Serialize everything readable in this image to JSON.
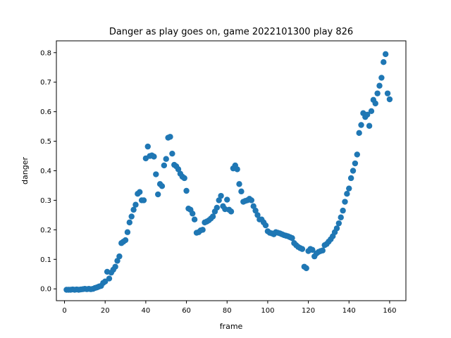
{
  "chart_data": {
    "type": "scatter",
    "title": "Danger as play goes on, game 2022101300 play 826",
    "xlabel": "frame",
    "ylabel": "danger",
    "xlim": [
      -4.0,
      168.0
    ],
    "ylim": [
      -0.04,
      0.84
    ],
    "xticks": [
      0,
      20,
      40,
      60,
      80,
      100,
      120,
      140,
      160
    ],
    "yticks": [
      0.0,
      0.1,
      0.2,
      0.3,
      0.4,
      0.5,
      0.6,
      0.7,
      0.8
    ],
    "grid": false,
    "legend": "none",
    "marker_color": "#1f77b4",
    "series": [
      {
        "x": [
          1,
          2,
          3,
          4,
          5,
          6,
          7,
          8,
          9,
          10,
          11,
          12,
          13,
          14,
          15,
          16,
          17,
          18,
          19,
          20,
          21,
          22,
          23,
          24,
          25,
          26,
          27,
          28,
          29,
          30,
          31,
          32,
          33,
          34,
          35,
          36,
          37,
          38,
          39,
          40,
          41,
          42,
          43,
          44,
          45,
          46,
          47,
          48,
          49,
          50,
          51,
          52,
          53,
          54,
          55,
          56,
          57,
          58,
          59,
          60,
          61,
          62,
          63,
          64,
          65,
          66,
          67,
          68,
          69,
          70,
          71,
          72,
          73,
          74,
          75,
          76,
          77,
          78,
          79,
          80,
          81,
          82,
          83,
          84,
          85,
          86,
          87,
          88,
          89,
          90,
          91,
          92,
          93,
          94,
          95,
          96,
          97,
          98,
          99,
          100,
          101,
          102,
          103,
          104,
          105,
          106,
          107,
          108,
          109,
          110,
          111,
          112,
          113,
          114,
          115,
          116,
          117,
          118,
          119,
          120,
          121,
          122,
          123,
          124,
          125,
          126,
          127,
          128,
          129,
          130,
          131,
          132,
          133,
          134,
          135,
          136,
          137,
          138,
          139,
          140,
          141,
          142,
          143,
          144,
          145,
          146,
          147,
          148,
          149,
          150,
          151,
          152,
          153,
          154,
          155,
          156,
          157,
          158,
          159,
          160
        ],
        "y": [
          -0.003,
          -0.003,
          -0.003,
          -0.002,
          -0.003,
          -0.002,
          -0.003,
          -0.002,
          -0.001,
          0.0,
          -0.001,
          0.0,
          -0.001,
          0.0,
          0.003,
          0.005,
          0.008,
          0.01,
          0.02,
          0.025,
          0.058,
          0.035,
          0.055,
          0.065,
          0.075,
          0.095,
          0.11,
          0.155,
          0.16,
          0.165,
          0.192,
          0.225,
          0.245,
          0.268,
          0.285,
          0.322,
          0.328,
          0.3,
          0.3,
          0.442,
          0.482,
          0.45,
          0.452,
          0.448,
          0.388,
          0.32,
          0.355,
          0.348,
          0.418,
          0.44,
          0.512,
          0.515,
          0.458,
          0.42,
          0.415,
          0.405,
          0.39,
          0.38,
          0.375,
          0.332,
          0.272,
          0.268,
          0.255,
          0.235,
          0.19,
          0.192,
          0.198,
          0.2,
          0.225,
          0.228,
          0.232,
          0.238,
          0.245,
          0.262,
          0.275,
          0.3,
          0.315,
          0.28,
          0.27,
          0.302,
          0.268,
          0.262,
          0.408,
          0.418,
          0.405,
          0.355,
          0.33,
          0.295,
          0.298,
          0.3,
          0.305,
          0.3,
          0.28,
          0.265,
          0.25,
          0.235,
          0.235,
          0.225,
          0.215,
          0.195,
          0.19,
          0.188,
          0.185,
          0.192,
          0.19,
          0.188,
          0.185,
          0.182,
          0.18,
          0.178,
          0.175,
          0.172,
          0.155,
          0.148,
          0.142,
          0.138,
          0.135,
          0.075,
          0.07,
          0.128,
          0.135,
          0.132,
          0.11,
          0.12,
          0.125,
          0.128,
          0.13,
          0.148,
          0.152,
          0.16,
          0.168,
          0.178,
          0.192,
          0.205,
          0.222,
          0.242,
          0.265,
          0.295,
          0.322,
          0.34,
          0.375,
          0.4,
          0.425,
          0.455,
          0.528,
          0.555,
          0.595,
          0.582,
          0.59,
          0.552,
          0.602,
          0.64,
          0.628,
          0.662,
          0.688,
          0.715,
          0.768,
          0.795,
          0.662,
          0.642
        ]
      }
    ]
  }
}
